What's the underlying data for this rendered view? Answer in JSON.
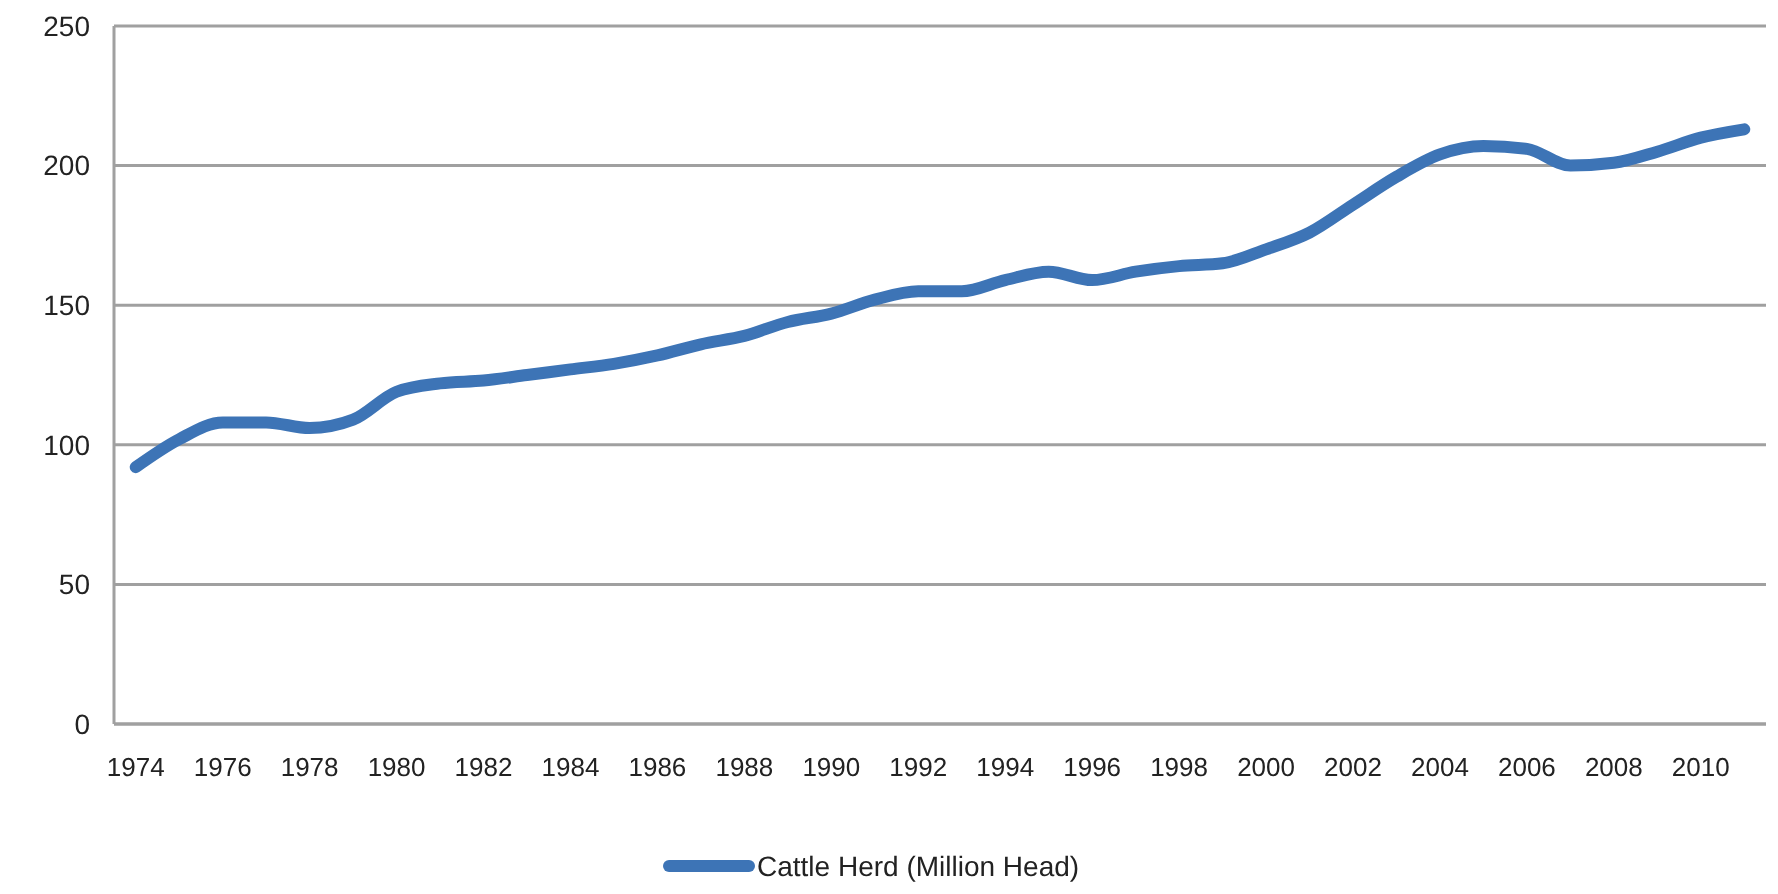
{
  "chart_data": {
    "type": "line",
    "categories": [
      "1974",
      null,
      "1976",
      null,
      "1978",
      null,
      "1980",
      null,
      "1982",
      null,
      "1984",
      null,
      "1986",
      null,
      "1988",
      null,
      "1990",
      null,
      "1992",
      null,
      "1994",
      null,
      "1996",
      null,
      "1998",
      null,
      "2000",
      null,
      "2002",
      null,
      "2004",
      null,
      "2006",
      null,
      "2008",
      null,
      "2010",
      null
    ],
    "series": [
      {
        "name": "Cattle Herd (Million Head)",
        "color": "#3d74b6",
        "values": [
          92,
          102,
          108,
          108,
          106,
          109,
          119,
          122,
          123,
          125,
          127,
          129,
          132,
          136,
          139,
          144,
          147,
          152,
          155,
          155,
          159,
          162,
          159,
          162,
          164,
          165,
          170,
          176,
          186,
          196,
          204,
          207,
          206,
          200,
          201,
          205,
          210,
          213
        ]
      }
    ],
    "ylim": [
      0,
      250
    ],
    "yticks": [
      0,
      50,
      100,
      150,
      200,
      250
    ],
    "grid": "y",
    "legend": "bottom",
    "marker": "none",
    "line_style": "solid"
  }
}
